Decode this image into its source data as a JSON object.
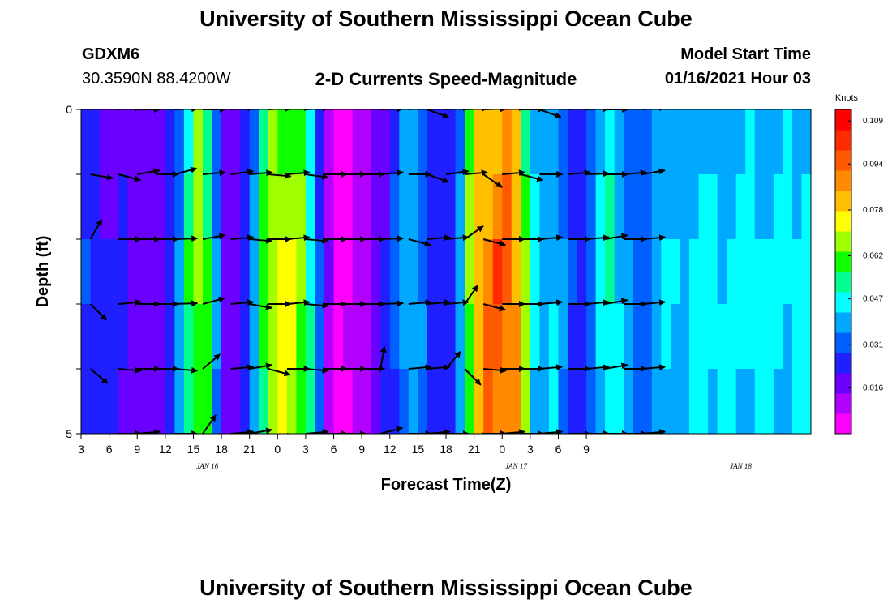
{
  "header": {
    "title_top": "University of Southern Mississippi Ocean Cube",
    "title_bottom": "University of Southern Mississippi Ocean Cube",
    "station_id": "GDXM6",
    "station_coords": "30.3590N 88.4200W",
    "plot_title": "2-D Currents Speed-Magnitude",
    "model_start_label": "Model Start Time",
    "model_start_value": "01/16/2021 Hour 03"
  },
  "chart_data": {
    "type": "heatmap",
    "title": "2-D Currents Speed-Magnitude",
    "xlabel": "Forecast Time(Z)",
    "ylabel": "Depth (ft)",
    "x_tick_labels": [
      "3",
      "6",
      "9",
      "12",
      "15",
      "18",
      "21",
      "0",
      "3",
      "6",
      "9",
      "12",
      "15",
      "18",
      "21",
      "0",
      "3",
      "6",
      "9"
    ],
    "date_labels": [
      {
        "text": "JAN 16",
        "hour": 13.5
      },
      {
        "text": "JAN 17",
        "hour": 46.5
      },
      {
        "text": "JAN 18",
        "hour": 70.5
      }
    ],
    "x_range_hours": [
      0,
      78
    ],
    "y_range_ft": [
      0,
      5
    ],
    "y_tick_labels": [
      "0",
      "5"
    ],
    "depth_levels_ft": [
      0.5,
      1.5,
      2.5,
      3.5,
      4.5
    ],
    "colorbar": {
      "title": "Knots",
      "ticks": [
        "0.109",
        "0.094",
        "0.078",
        "0.062",
        "0.047",
        "0.031",
        "0.016"
      ],
      "range": [
        0.0,
        0.113
      ],
      "colors": [
        "#ff00ff",
        "#b200ff",
        "#6a00ff",
        "#1f1fff",
        "#0060ff",
        "#00a8ff",
        "#00ffff",
        "#00ff90",
        "#10ff00",
        "#a0ff00",
        "#ffff00",
        "#ffc000",
        "#ff8a00",
        "#ff5a00",
        "#ff2a00",
        "#ff0000"
      ]
    },
    "speed_profile_by_hour": [
      [
        0,
        0.03
      ],
      [
        1,
        0.026
      ],
      [
        3,
        0.022
      ],
      [
        5,
        0.022
      ],
      [
        7,
        0.018
      ],
      [
        8,
        0.017
      ],
      [
        9,
        0.024
      ],
      [
        10,
        0.028
      ],
      [
        11,
        0.045
      ],
      [
        12,
        0.065
      ],
      [
        13,
        0.07
      ],
      [
        14,
        0.05
      ],
      [
        15,
        0.022
      ],
      [
        16,
        0.018
      ],
      [
        17,
        0.022
      ],
      [
        18,
        0.03
      ],
      [
        19,
        0.05
      ],
      [
        20,
        0.068
      ],
      [
        21,
        0.072
      ],
      [
        23,
        0.07
      ],
      [
        24,
        0.06
      ],
      [
        25,
        0.04
      ],
      [
        26,
        0.02
      ],
      [
        27,
        0.008
      ],
      [
        28,
        0.006
      ],
      [
        30,
        0.01
      ],
      [
        31,
        0.016
      ],
      [
        32,
        0.018
      ],
      [
        33,
        0.025
      ],
      [
        34,
        0.035
      ],
      [
        35,
        0.04
      ],
      [
        36,
        0.038
      ],
      [
        37,
        0.03
      ],
      [
        38,
        0.022
      ],
      [
        39,
        0.025
      ],
      [
        40,
        0.03
      ],
      [
        41,
        0.05
      ],
      [
        42,
        0.08
      ],
      [
        43,
        0.09
      ],
      [
        45,
        0.095
      ],
      [
        46,
        0.098
      ],
      [
        47,
        0.08
      ],
      [
        48,
        0.05
      ],
      [
        49,
        0.04
      ],
      [
        50,
        0.045
      ],
      [
        51,
        0.04
      ],
      [
        52,
        0.03
      ],
      [
        53,
        0.025
      ],
      [
        54,
        0.028
      ],
      [
        55,
        0.038
      ],
      [
        56,
        0.05
      ],
      [
        57,
        0.052
      ],
      [
        58,
        0.038
      ],
      [
        60,
        0.03
      ],
      [
        61,
        0.035
      ],
      [
        62,
        0.045
      ],
      [
        63,
        0.04
      ],
      [
        66,
        0.045
      ]
    ],
    "depth_speed_factor": [
      0.9,
      0.95,
      1.0,
      1.0,
      0.95
    ],
    "vector_hours": [
      1,
      4,
      6,
      8,
      10,
      13,
      16,
      18,
      20,
      22,
      24,
      26,
      28,
      30,
      32,
      35,
      37,
      39,
      41,
      43,
      45,
      47,
      49,
      52,
      54,
      56,
      58,
      60
    ],
    "vector_angles_deg": [
      [
        15,
        5,
        0,
        40,
        2,
        0,
        5,
        10,
        3,
        5,
        3,
        10,
        15,
        10,
        2,
        10,
        -20,
        5,
        3,
        2,
        5,
        0,
        -20,
        5,
        2,
        0,
        10,
        5
      ],
      [
        -10,
        -15,
        10,
        0,
        15,
        5,
        8,
        5,
        -5,
        5,
        -8,
        0,
        0,
        0,
        5,
        0,
        -20,
        8,
        5,
        -35,
        5,
        -15,
        0,
        5,
        2,
        0,
        5,
        10
      ],
      [
        60,
        0,
        0,
        0,
        2,
        10,
        5,
        -5,
        0,
        5,
        -5,
        0,
        0,
        0,
        2,
        -15,
        5,
        5,
        35,
        -15,
        0,
        0,
        5,
        0,
        5,
        10,
        0,
        5
      ],
      [
        -45,
        5,
        0,
        0,
        2,
        15,
        5,
        -10,
        0,
        5,
        -5,
        0,
        0,
        0,
        2,
        5,
        5,
        5,
        55,
        -15,
        0,
        0,
        5,
        0,
        5,
        10,
        0,
        5
      ],
      [
        -40,
        -5,
        0,
        0,
        -5,
        40,
        5,
        10,
        -15,
        0,
        -5,
        0,
        0,
        0,
        80,
        5,
        5,
        50,
        -45,
        -5,
        0,
        0,
        5,
        0,
        5,
        10,
        0,
        5
      ],
      [
        -30,
        0,
        5,
        -10,
        0,
        55,
        5,
        10,
        -15,
        -10,
        5,
        0,
        0,
        -60,
        15,
        0,
        5,
        0,
        -5,
        0,
        5,
        0,
        5,
        0,
        0,
        0,
        0,
        5
      ]
    ]
  }
}
